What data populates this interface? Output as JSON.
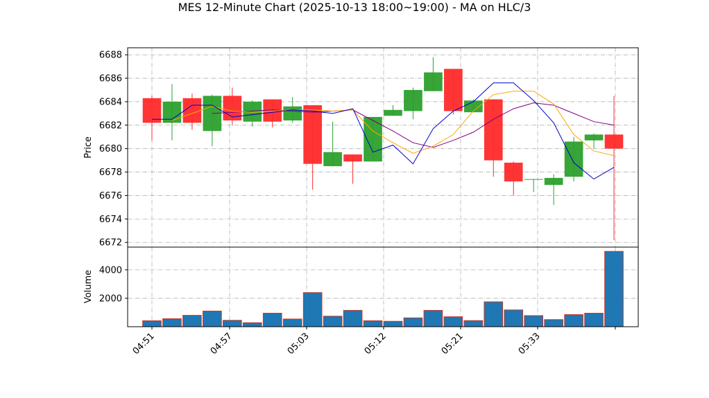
{
  "chart_data": {
    "type": "ohlc-candlestick",
    "title": "MES 12-Minute Chart (2025-10-13 18:00~19:00) - MA on HLC/3",
    "price_panel": {
      "ylabel": "Price",
      "ylim": [
        6671.6,
        6688.6
      ],
      "yticks": [
        6672,
        6674,
        6676,
        6678,
        6680,
        6682,
        6684,
        6686,
        6688
      ],
      "grid": true
    },
    "volume_panel": {
      "ylabel": "Volume",
      "ylim": [
        0,
        5600
      ],
      "yticks": [
        2000,
        4000
      ],
      "grid": true
    },
    "x_ticks": [
      "04:51",
      "04:57",
      "05:03",
      "05:12",
      "05:21",
      "05:33"
    ],
    "colors": {
      "up": "#2ca02c",
      "down": "#ff2a2a",
      "volume_fill": "#1f77b4",
      "volume_edge": "#c0392b",
      "ma_fast": "#0000cc",
      "ma_mid": "#ffa500",
      "ma_slow": "#800080"
    },
    "candles": [
      {
        "open": 6684.3,
        "high": 6684.5,
        "low": 6680.7,
        "close": 6682.2,
        "volume": 420
      },
      {
        "open": 6682.2,
        "high": 6685.5,
        "low": 6680.7,
        "close": 6684.0,
        "volume": 560
      },
      {
        "open": 6684.3,
        "high": 6684.7,
        "low": 6681.6,
        "close": 6682.2,
        "volume": 800
      },
      {
        "open": 6681.5,
        "high": 6684.6,
        "low": 6680.2,
        "close": 6684.5,
        "volume": 1100
      },
      {
        "open": 6684.5,
        "high": 6685.2,
        "low": 6682.0,
        "close": 6682.4,
        "volume": 450
      },
      {
        "open": 6682.3,
        "high": 6684.1,
        "low": 6681.9,
        "close": 6684.0,
        "volume": 280
      },
      {
        "open": 6684.2,
        "high": 6684.2,
        "low": 6681.8,
        "close": 6682.3,
        "volume": 950
      },
      {
        "open": 6682.4,
        "high": 6684.4,
        "low": 6682.2,
        "close": 6683.6,
        "volume": 540
      },
      {
        "open": 6683.7,
        "high": 6683.7,
        "low": 6676.5,
        "close": 6678.7,
        "volume": 2400
      },
      {
        "open": 6678.5,
        "high": 6682.3,
        "low": 6678.5,
        "close": 6679.7,
        "volume": 740
      },
      {
        "open": 6679.5,
        "high": 6679.5,
        "low": 6677.0,
        "close": 6678.9,
        "volume": 1150
      },
      {
        "open": 6678.9,
        "high": 6682.7,
        "low": 6678.9,
        "close": 6682.7,
        "volume": 420
      },
      {
        "open": 6682.8,
        "high": 6683.7,
        "low": 6682.8,
        "close": 6683.3,
        "volume": 380
      },
      {
        "open": 6683.2,
        "high": 6685.2,
        "low": 6682.5,
        "close": 6685.0,
        "volume": 620
      },
      {
        "open": 6684.9,
        "high": 6687.8,
        "low": 6684.9,
        "close": 6686.5,
        "volume": 1150
      },
      {
        "open": 6686.8,
        "high": 6686.8,
        "low": 6682.9,
        "close": 6683.2,
        "volume": 700
      },
      {
        "open": 6683.1,
        "high": 6684.2,
        "low": 6683.1,
        "close": 6684.1,
        "volume": 430
      },
      {
        "open": 6684.2,
        "high": 6684.2,
        "low": 6677.6,
        "close": 6679.0,
        "volume": 1750
      },
      {
        "open": 6678.8,
        "high": 6678.9,
        "low": 6676.0,
        "close": 6677.2,
        "volume": 1180
      },
      {
        "open": 6677.4,
        "high": 6677.4,
        "low": 6676.3,
        "close": 6677.4,
        "volume": 780
      },
      {
        "open": 6676.9,
        "high": 6677.8,
        "low": 6675.2,
        "close": 6677.5,
        "volume": 500
      },
      {
        "open": 6677.6,
        "high": 6681.0,
        "low": 6677.2,
        "close": 6680.6,
        "volume": 850
      },
      {
        "open": 6680.7,
        "high": 6681.3,
        "low": 6680.0,
        "close": 6681.2,
        "volume": 950
      },
      {
        "open": 6681.2,
        "high": 6684.5,
        "low": 6672.2,
        "close": 6680.0,
        "volume": 5300
      }
    ],
    "ma_fast": [
      [
        0,
        6682.5
      ],
      [
        1,
        6682.5
      ],
      [
        2,
        6683.7
      ],
      [
        3,
        6683.7
      ],
      [
        4,
        6682.7
      ],
      [
        5,
        6682.9
      ],
      [
        6,
        6683.1
      ],
      [
        7,
        6683.3
      ],
      [
        8,
        6683.2
      ],
      [
        9,
        6683.0
      ],
      [
        10,
        6683.4
      ],
      [
        11,
        6679.7
      ],
      [
        12,
        6680.3
      ],
      [
        13,
        6678.7
      ],
      [
        14,
        6681.7
      ],
      [
        15,
        6683.2
      ],
      [
        16,
        6684.0
      ],
      [
        17,
        6685.6
      ],
      [
        18,
        6685.6
      ],
      [
        19,
        6684.1
      ],
      [
        20,
        6682.2
      ],
      [
        21,
        6678.8
      ],
      [
        22,
        6677.4
      ],
      [
        23,
        6678.4
      ]
    ],
    "ma_mid": [
      [
        1,
        6682.4
      ],
      [
        2,
        6683.0
      ],
      [
        3,
        6683.6
      ],
      [
        4,
        6683.2
      ],
      [
        5,
        6683.1
      ],
      [
        6,
        6683.2
      ],
      [
        7,
        6683.3
      ],
      [
        8,
        6683.3
      ],
      [
        9,
        6683.2
      ],
      [
        10,
        6683.3
      ],
      [
        11,
        6681.5
      ],
      [
        12,
        6680.5
      ],
      [
        13,
        6679.6
      ],
      [
        14,
        6680.2
      ],
      [
        15,
        6681.2
      ],
      [
        16,
        6683.2
      ],
      [
        17,
        6684.6
      ],
      [
        18,
        6684.9
      ],
      [
        19,
        6684.9
      ],
      [
        20,
        6683.8
      ],
      [
        21,
        6681.2
      ],
      [
        22,
        6679.8
      ],
      [
        23,
        6679.4
      ]
    ],
    "ma_slow": [
      [
        3,
        6683.0
      ],
      [
        4,
        6683.1
      ],
      [
        5,
        6683.2
      ],
      [
        6,
        6683.3
      ],
      [
        7,
        6683.2
      ],
      [
        8,
        6683.1
      ],
      [
        9,
        6683.2
      ],
      [
        10,
        6683.3
      ],
      [
        11,
        6682.4
      ],
      [
        12,
        6681.5
      ],
      [
        13,
        6680.5
      ],
      [
        14,
        6680.1
      ],
      [
        15,
        6680.7
      ],
      [
        16,
        6681.4
      ],
      [
        17,
        6682.5
      ],
      [
        18,
        6683.4
      ],
      [
        19,
        6683.9
      ],
      [
        20,
        6683.7
      ],
      [
        21,
        6683.0
      ],
      [
        22,
        6682.3
      ],
      [
        23,
        6682.0
      ]
    ]
  }
}
